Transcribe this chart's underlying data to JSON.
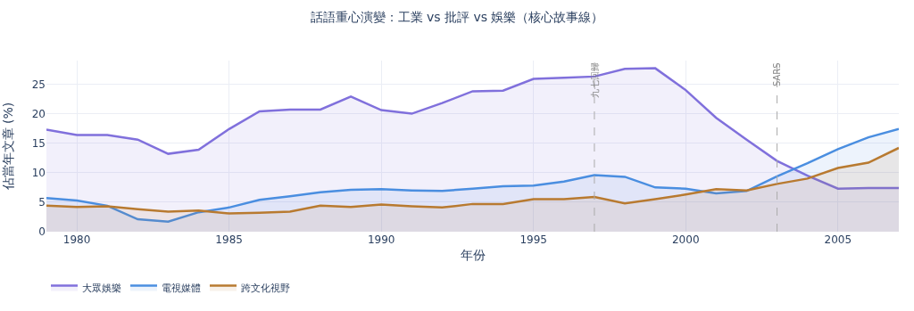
{
  "chart_data": {
    "type": "area",
    "title": "話語重心演變：工業 vs 批評 vs 娛樂（核心故事線）",
    "xlabel": "年份",
    "ylabel": "佔當年文章 (%)",
    "x": [
      1979,
      1980,
      1981,
      1982,
      1983,
      1984,
      1985,
      1986,
      1987,
      1988,
      1989,
      1990,
      1991,
      1992,
      1993,
      1994,
      1995,
      1996,
      1997,
      1998,
      1999,
      2000,
      2001,
      2002,
      2003,
      2004,
      2005,
      2006,
      2007
    ],
    "series": [
      {
        "name": "大眾娛樂",
        "color": "#8070dc",
        "values": [
          17.3,
          16.4,
          16.4,
          15.6,
          13.2,
          13.9,
          17.4,
          20.4,
          20.7,
          20.7,
          22.9,
          20.6,
          20.0,
          21.8,
          23.8,
          23.9,
          25.9,
          26.1,
          26.3,
          27.6,
          27.7,
          24.0,
          19.3,
          15.6,
          12.0,
          9.5,
          7.3,
          7.4,
          7.4
        ]
      },
      {
        "name": "電視媒體",
        "color": "#4a8ee0",
        "values": [
          5.7,
          5.3,
          4.4,
          2.1,
          1.7,
          3.3,
          4.1,
          5.4,
          6.0,
          6.7,
          7.1,
          7.2,
          7.0,
          6.9,
          7.3,
          7.7,
          7.8,
          8.5,
          9.6,
          9.3,
          7.5,
          7.3,
          6.5,
          6.9,
          9.4,
          11.6,
          14.0,
          16.0,
          17.4
        ]
      },
      {
        "name": "跨文化視野",
        "color": "#b87a30",
        "values": [
          4.4,
          4.2,
          4.3,
          3.8,
          3.4,
          3.6,
          3.1,
          3.2,
          3.4,
          4.4,
          4.2,
          4.6,
          4.3,
          4.1,
          4.7,
          4.7,
          5.5,
          5.5,
          5.9,
          4.8,
          5.5,
          6.3,
          7.2,
          7.0,
          8.1,
          9.0,
          10.8,
          11.7,
          14.2
        ]
      }
    ],
    "xlim": [
      1979,
      2007
    ],
    "xticks": [
      1980,
      1985,
      1990,
      1995,
      2000,
      2005
    ],
    "ylim": [
      0,
      29
    ],
    "yticks": [
      0,
      5,
      10,
      15,
      20,
      25
    ],
    "ref_lines": [
      {
        "axis": "x",
        "value": 1997,
        "label": "九七回歸",
        "color": "#aaaaaa",
        "line_style": "dashed"
      },
      {
        "axis": "x",
        "value": 2003,
        "label": "SARS",
        "color": "#aaaaaa",
        "line_style": "dashed"
      }
    ],
    "grid": true,
    "legend": "bottom left",
    "line_style": "solid",
    "marker": "none"
  }
}
